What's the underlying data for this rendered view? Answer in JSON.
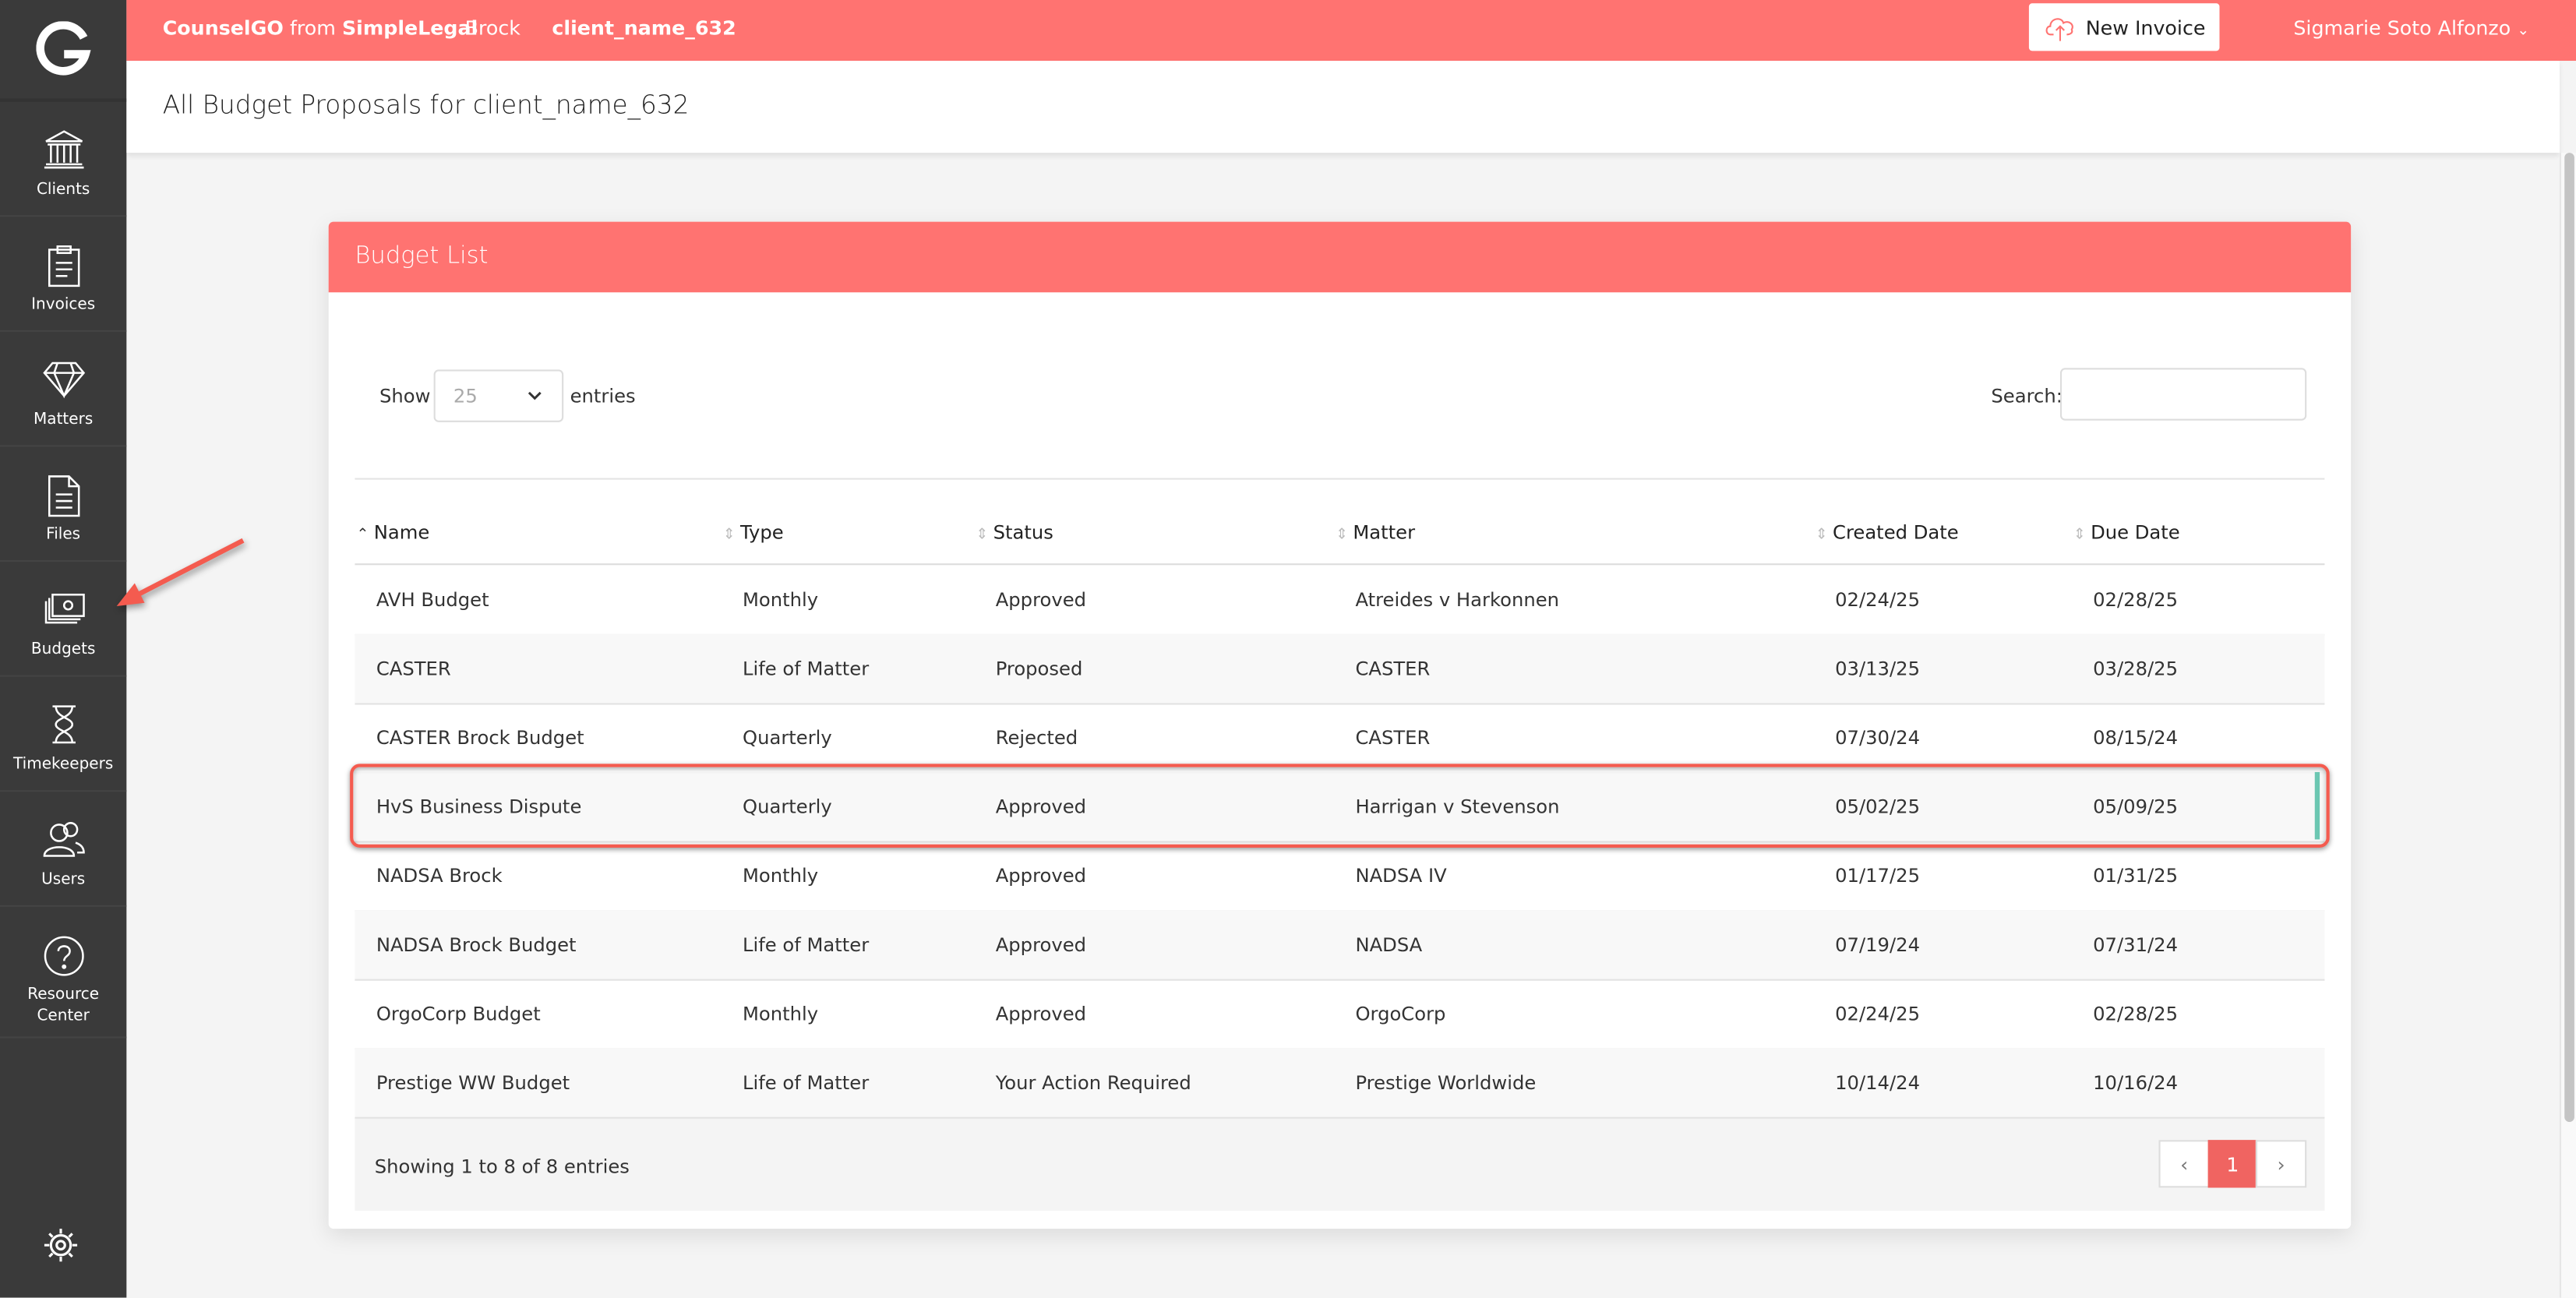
{
  "topbar": {
    "brand_bold": "CounselGO",
    "brand_from": "from",
    "brand_company": "SimpleLegal",
    "breadcrumb_firm": "Brock",
    "breadcrumb_client": "client_name_632",
    "new_invoice_label": "New Invoice",
    "user_name": "Sigmarie Soto Alfonzo",
    "accent_color": "#ff7371"
  },
  "sidebar": {
    "items": [
      {
        "label": "Clients",
        "icon": "bank-icon"
      },
      {
        "label": "Invoices",
        "icon": "clipboard-icon"
      },
      {
        "label": "Matters",
        "icon": "diamond-icon"
      },
      {
        "label": "Files",
        "icon": "file-icon"
      },
      {
        "label": "Budgets",
        "icon": "money-icon"
      },
      {
        "label": "Timekeepers",
        "icon": "hourglass-icon"
      },
      {
        "label": "Users",
        "icon": "users-icon"
      },
      {
        "label": "Resource Center",
        "icon": "help-icon"
      }
    ],
    "settings_icon": "gear-icon"
  },
  "page": {
    "title": "All Budget Proposals for client_name_632"
  },
  "card": {
    "title": "Budget List",
    "show_label": "Show",
    "entries_value": "25",
    "entries_label": "entries",
    "search_label": "Search:",
    "search_value": "",
    "columns": [
      "Name",
      "Type",
      "Status",
      "Matter",
      "Created Date",
      "Due Date"
    ],
    "rows": [
      [
        "AVH Budget",
        "Monthly",
        "Approved",
        "Atreides v Harkonnen",
        "02/24/25",
        "02/28/25"
      ],
      [
        "CASTER",
        "Life of Matter",
        "Proposed",
        "CASTER",
        "03/13/25",
        "03/28/25"
      ],
      [
        "CASTER Brock Budget",
        "Quarterly",
        "Rejected",
        "CASTER",
        "07/30/24",
        "08/15/24"
      ],
      [
        "HvS Business Dispute",
        "Quarterly",
        "Approved",
        "Harrigan v Stevenson",
        "05/02/25",
        "05/09/25"
      ],
      [
        "NADSA Brock",
        "Monthly",
        "Approved",
        "NADSA IV",
        "01/17/25",
        "01/31/25"
      ],
      [
        "NADSA Brock Budget",
        "Life of Matter",
        "Approved",
        "NADSA",
        "07/19/24",
        "07/31/24"
      ],
      [
        "OrgoCorp Budget",
        "Monthly",
        "Approved",
        "OrgoCorp",
        "02/24/25",
        "02/28/25"
      ],
      [
        "Prestige WW Budget",
        "Life of Matter",
        "Your Action Required",
        "Prestige Worldwide",
        "10/14/24",
        "10/16/24"
      ]
    ],
    "info": "Showing 1 to 8 of 8 entries",
    "pagination": {
      "prev": "‹",
      "current": "1",
      "next": "›"
    }
  }
}
